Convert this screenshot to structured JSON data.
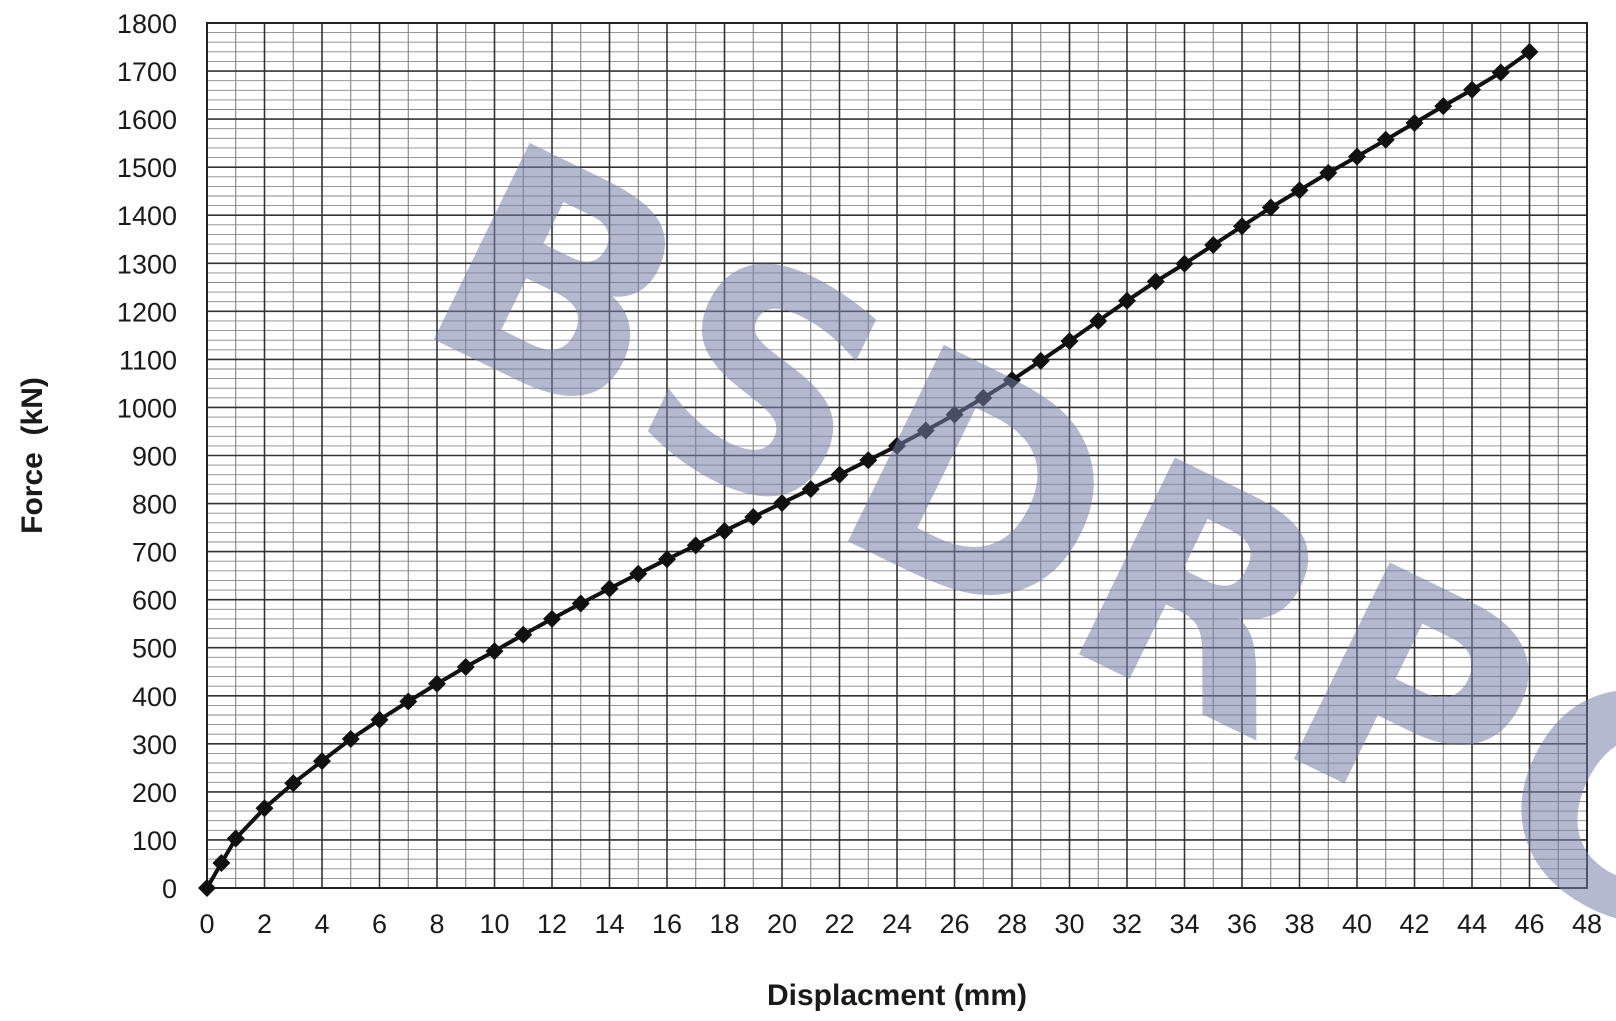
{
  "chart_data": {
    "type": "line",
    "title": "",
    "xlabel": "Displacment (mm)",
    "ylabel": "Force  (kN)",
    "xlim": [
      0,
      48
    ],
    "ylim": [
      0,
      1800
    ],
    "x_ticks": [
      "0",
      "2",
      "4",
      "6",
      "8",
      "10",
      "12",
      "14",
      "16",
      "18",
      "20",
      "22",
      "24",
      "26",
      "28",
      "30",
      "32",
      "34",
      "36",
      "38",
      "40",
      "42",
      "44",
      "46",
      "48"
    ],
    "y_ticks": [
      "0",
      "100",
      "200",
      "300",
      "400",
      "500",
      "600",
      "700",
      "800",
      "900",
      "1000",
      "1100",
      "1200",
      "1300",
      "1400",
      "1500",
      "1600",
      "1700",
      "1800"
    ],
    "grid": true,
    "legend": "none",
    "series": [
      {
        "color": "#111111",
        "marker": "diamond",
        "x": [
          0,
          0.5,
          1,
          2,
          3,
          4,
          5,
          6,
          7,
          8,
          9,
          10,
          11,
          12,
          13,
          14,
          15,
          16,
          17,
          18,
          19,
          20,
          21,
          22,
          23,
          24,
          25,
          26,
          27,
          28,
          29,
          30,
          31,
          32,
          33,
          34,
          35,
          36,
          37,
          38,
          39,
          40,
          41,
          42,
          43,
          44,
          45,
          46
        ],
        "y": [
          0,
          52,
          103,
          166,
          218,
          264,
          310,
          350,
          388,
          425,
          460,
          493,
          527,
          560,
          592,
          623,
          654,
          684,
          713,
          743,
          772,
          801,
          830,
          860,
          890,
          920,
          952,
          985,
          1020,
          1057,
          1097,
          1138,
          1180,
          1222,
          1262,
          1299,
          1338,
          1377,
          1416,
          1452,
          1488,
          1522,
          1557,
          1592,
          1627,
          1661,
          1697,
          1740
        ]
      }
    ]
  },
  "watermark": {
    "text": "BSDRPC"
  }
}
